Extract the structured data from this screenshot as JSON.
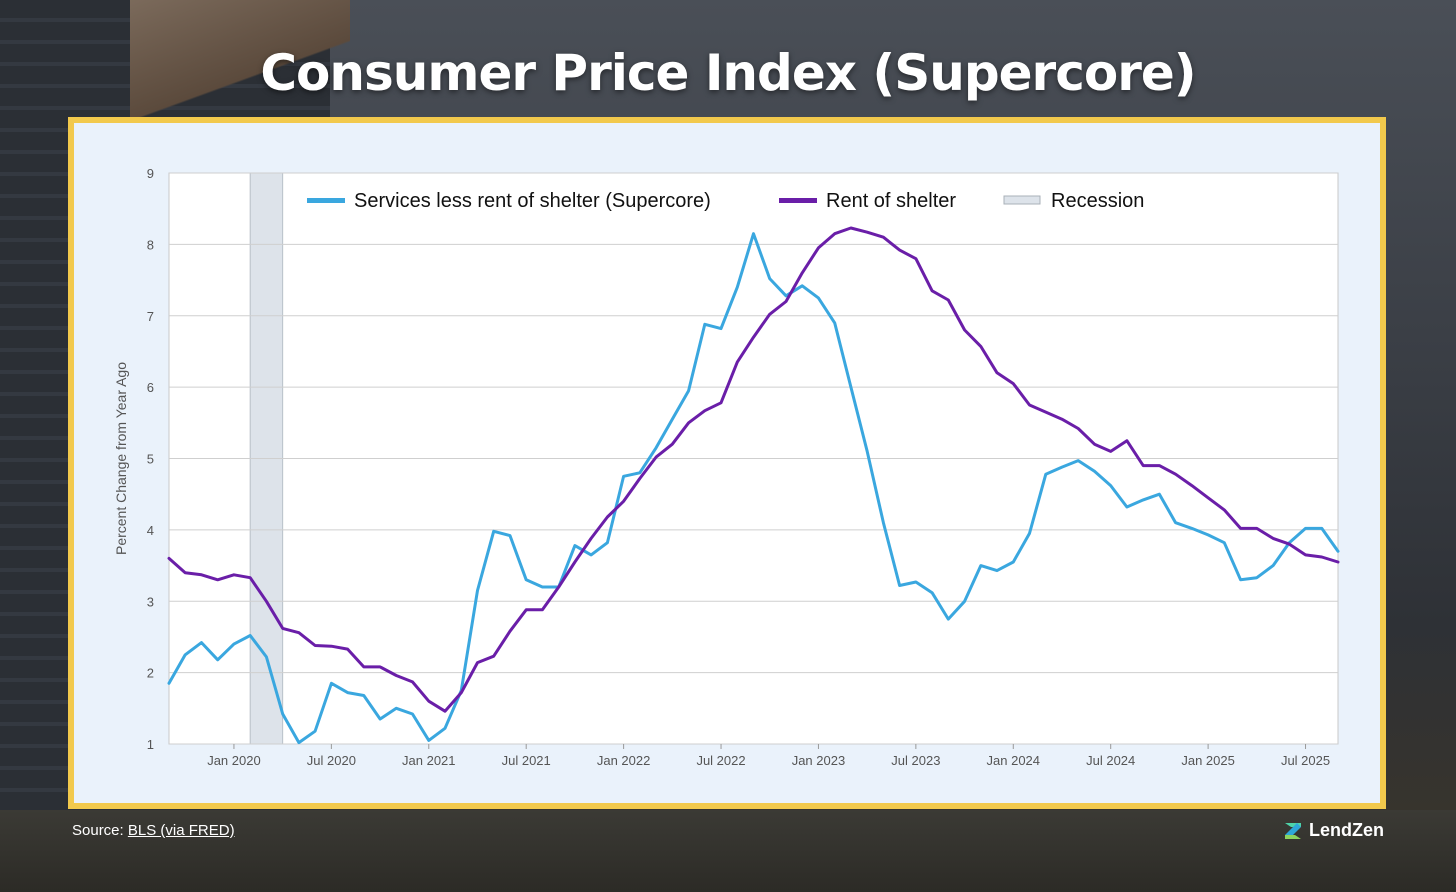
{
  "page": {
    "title": "Consumer Price Index (Supercore)",
    "source_label": "Source:",
    "source_link": "BLS (via FRED)",
    "brand": "LendZen"
  },
  "colors": {
    "supercore": "#3aa7df",
    "shelter": "#6a1ea8",
    "recession": "#dde3ea",
    "frame": "#f2c94c"
  },
  "chart_data": {
    "type": "line",
    "ylabel": "Percent Change from Year Ago",
    "xlabel": "",
    "ylim": [
      1,
      9
    ],
    "yticks": [
      1,
      2,
      3,
      4,
      5,
      6,
      7,
      8,
      9
    ],
    "xrange": [
      "2019-09",
      "2025-09"
    ],
    "xticks": [
      {
        "label": "Jan 2020",
        "date": "2020-01"
      },
      {
        "label": "Jul 2020",
        "date": "2020-07"
      },
      {
        "label": "Jan 2021",
        "date": "2021-01"
      },
      {
        "label": "Jul 2021",
        "date": "2021-07"
      },
      {
        "label": "Jan 2022",
        "date": "2022-01"
      },
      {
        "label": "Jul 2022",
        "date": "2022-07"
      },
      {
        "label": "Jan 2023",
        "date": "2023-01"
      },
      {
        "label": "Jul 2023",
        "date": "2023-07"
      },
      {
        "label": "Jan 2024",
        "date": "2024-01"
      },
      {
        "label": "Jul 2024",
        "date": "2024-07"
      },
      {
        "label": "Jan 2025",
        "date": "2025-01"
      },
      {
        "label": "Jul 2025",
        "date": "2025-07"
      }
    ],
    "recession": {
      "label": "Recession",
      "start": "2020-02",
      "end": "2020-04"
    },
    "x_start": "2019-09",
    "series": [
      {
        "name": "Services less rent of shelter (Supercore)",
        "color_key": "supercore",
        "values": [
          1.85,
          2.25,
          2.42,
          2.18,
          2.4,
          2.52,
          2.22,
          1.42,
          1.02,
          1.18,
          1.85,
          1.72,
          1.68,
          1.35,
          1.5,
          1.42,
          1.05,
          1.22,
          1.75,
          3.15,
          3.98,
          3.92,
          3.3,
          3.2,
          3.2,
          3.78,
          3.65,
          3.82,
          4.75,
          4.8,
          5.15,
          5.55,
          5.95,
          6.88,
          6.82,
          7.4,
          8.15,
          7.52,
          7.28,
          7.42,
          7.25,
          6.9,
          6.0,
          5.1,
          4.1,
          3.22,
          3.27,
          3.12,
          2.75,
          3.0,
          3.5,
          3.43,
          3.55,
          3.95,
          4.78,
          4.88,
          4.97,
          4.82,
          4.62,
          4.32,
          4.42,
          4.5,
          4.1,
          4.02,
          3.93,
          3.82,
          3.3,
          3.33,
          3.5,
          3.82,
          4.02,
          4.02,
          3.7
        ]
      },
      {
        "name": "Rent of shelter",
        "color_key": "shelter",
        "values": [
          3.6,
          3.4,
          3.37,
          3.3,
          3.37,
          3.33,
          3.0,
          2.62,
          2.56,
          2.38,
          2.37,
          2.33,
          2.08,
          2.08,
          1.96,
          1.87,
          1.6,
          1.46,
          1.72,
          2.14,
          2.23,
          2.58,
          2.88,
          2.88,
          3.2,
          3.55,
          3.88,
          4.18,
          4.4,
          4.72,
          5.02,
          5.2,
          5.5,
          5.67,
          5.78,
          6.35,
          6.7,
          7.02,
          7.2,
          7.6,
          7.95,
          8.15,
          8.23,
          8.17,
          8.1,
          7.92,
          7.8,
          7.35,
          7.22,
          6.8,
          6.57,
          6.2,
          6.05,
          5.75,
          5.65,
          5.55,
          5.42,
          5.2,
          5.1,
          5.25,
          4.9,
          4.9,
          4.78,
          4.62,
          4.45,
          4.28,
          4.02,
          4.02,
          3.88,
          3.8,
          3.65,
          3.62,
          3.55
        ]
      }
    ]
  }
}
